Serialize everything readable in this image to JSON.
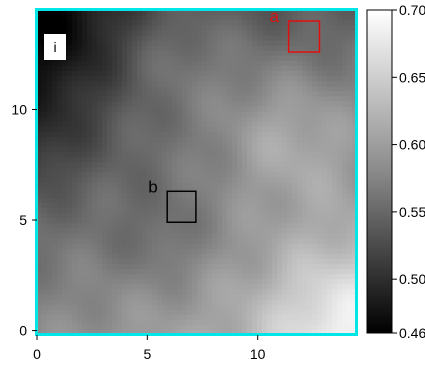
{
  "chart_data": {
    "type": "heatmap",
    "title": "",
    "xlabel": "",
    "ylabel": "",
    "xlim": [
      0,
      14.5
    ],
    "ylim": [
      -0.2,
      14.5
    ],
    "x_ticks": [
      "0",
      "5",
      "10"
    ],
    "x_tick_values": [
      0,
      5,
      10
    ],
    "y_ticks": [
      "0",
      "5",
      "10"
    ],
    "y_tick_values": [
      0,
      5,
      10
    ],
    "colormap": "gray",
    "colorbar": {
      "range": [
        0.46,
        0.7
      ],
      "ticks": [
        "0.70",
        "0.65",
        "0.60",
        "0.55",
        "0.50",
        "0.46"
      ],
      "tick_values": [
        0.7,
        0.65,
        0.6,
        0.55,
        0.5,
        0.46
      ]
    },
    "frame_color": "#00e5e5",
    "field_description": "darker values near the top-left and left edge, brighter values toward the bottom-right",
    "panel_label": "i",
    "annotations": [
      {
        "label": "a",
        "color": "#e01010",
        "x0": 11.4,
        "y0": 12.6,
        "x1": 12.8,
        "y1": 14.0
      },
      {
        "label": "b",
        "color": "#000000",
        "x0": 5.9,
        "y0": 4.9,
        "x1": 7.2,
        "y1": 6.3
      }
    ]
  }
}
